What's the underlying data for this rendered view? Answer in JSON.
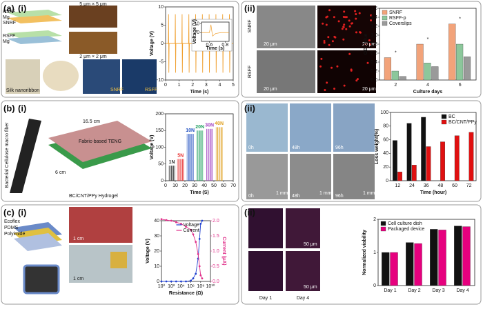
{
  "panels": {
    "a": "(a)",
    "b": "(b)",
    "c": "(c)",
    "i": "(i)",
    "ii": "(ii)"
  },
  "texts": [
    "RSFF",
    "Mg",
    "SNRF",
    "Silk nanoribbon",
    "5 μm × 5 μm",
    "2 μm × 2 μm",
    "20 μm",
    "Fabric-based TENG",
    "16.5 cm",
    "6 cm",
    "BC/CNT/PPy Hydrogel",
    "Bacterial Cellulose macro fiber",
    "0h",
    "48h",
    "96h",
    "1 mm",
    "Ecoflex",
    "PDMS",
    "Polyimide",
    "1 cm",
    "Day 1",
    "Day 4",
    "50 μm"
  ],
  "chart_data": [
    {
      "type": "line",
      "xlabel": "Time (s)",
      "ylabel": "Voltage (V)",
      "x": [
        0,
        0.2,
        0.22,
        0.24,
        0.26,
        0.7,
        0.72,
        0.74,
        0.76,
        1.2,
        1.22,
        1.24,
        1.26,
        1.7,
        1.72,
        1.74,
        1.76,
        2.2,
        2.22,
        2.24,
        2.26,
        2.7,
        2.72,
        2.74,
        2.76,
        3.2,
        3.22,
        3.24,
        3.26,
        3.7,
        3.72,
        3.74,
        3.76,
        4.2,
        4.22,
        4.24,
        4.26,
        4.7,
        4.72,
        4.74,
        4.76,
        5
      ],
      "series": [
        {
          "color": "#f0a030",
          "values": [
            0,
            0,
            8,
            -8,
            0,
            0,
            8,
            -8,
            0,
            0,
            8,
            -8,
            0,
            0,
            8,
            -8,
            0,
            0,
            8,
            -8,
            0,
            0,
            8,
            -8,
            0,
            0,
            8,
            -8,
            0,
            0,
            8,
            -8,
            0,
            0,
            8,
            -8,
            0,
            0,
            8,
            -8,
            0,
            0
          ]
        }
      ],
      "xlim": [
        0,
        5
      ],
      "ylim": [
        -10,
        10
      ],
      "xticks": [
        0,
        1,
        2,
        3,
        4,
        5
      ],
      "yticks": [
        -10,
        -5,
        0,
        5,
        10
      ]
    },
    {
      "type": "line",
      "xlabel": "Time (s)",
      "ylabel": "Voltage (V)",
      "x": [
        0.5,
        0.6,
        0.62,
        0.64,
        0.68,
        0.75,
        0.85
      ],
      "series": [
        {
          "color": "#f0a030",
          "values": [
            0,
            0,
            9,
            -4,
            -1,
            0,
            0
          ]
        }
      ],
      "xlim": [
        0.5,
        0.85
      ],
      "ylim": [
        -10,
        12
      ],
      "xticks": [
        0.6,
        0.8
      ],
      "yticks": [
        0,
        10
      ]
    },
    {
      "type": "bar",
      "xlabel": "Culture days",
      "ylabel": "OD Value",
      "categories": [
        "2",
        "4",
        "6"
      ],
      "series": [
        {
          "name": "SNRF",
          "color": "#f2a37a",
          "values": [
            0.5,
            0.8,
            1.25
          ]
        },
        {
          "name": "RSFF-p",
          "color": "#8cc79b",
          "values": [
            0.2,
            0.38,
            0.8
          ]
        },
        {
          "name": "Coverslips",
          "color": "#9a9a9a",
          "values": [
            0.08,
            0.3,
            0.52
          ]
        }
      ],
      "ylim": [
        0,
        1.6
      ],
      "yticks": [
        {
          "value": 0,
          "label": "0.0"
        },
        0.2,
        0.4,
        0.6,
        0.8,
        {
          "value": 1,
          "label": "1.0"
        },
        1.2,
        1.4,
        1.6
      ],
      "legend": "top-left",
      "annotation": "*"
    },
    {
      "type": "signal",
      "xlabel": "Time (S)",
      "ylabel": "Voltage (V)",
      "series": [
        {
          "name": "1N",
          "color": "#333333",
          "x_range": [
            3,
            10
          ],
          "values": [
            45
          ]
        },
        {
          "name": "5N",
          "color": "#e83030",
          "x_range": [
            12,
            19
          ],
          "values": [
            65
          ]
        },
        {
          "name": "10N",
          "color": "#2050c0",
          "x_range": [
            22,
            29
          ],
          "values": [
            140
          ]
        },
        {
          "name": "20N",
          "color": "#20a060",
          "x_range": [
            32,
            39
          ],
          "values": [
            150
          ]
        },
        {
          "name": "30N",
          "color": "#a040c0",
          "x_range": [
            42,
            49
          ],
          "values": [
            155
          ]
        },
        {
          "name": "40N",
          "color": "#e0a020",
          "x_range": [
            52,
            59
          ],
          "values": [
            160
          ]
        }
      ],
      "xlim": [
        0,
        70
      ],
      "ylim": [
        0,
        200
      ],
      "xticks": [
        0,
        10,
        20,
        30,
        40,
        50,
        60,
        70
      ],
      "yticks": [
        0,
        50,
        100,
        150,
        200
      ]
    },
    {
      "type": "bar",
      "xlabel": "Time (hour)",
      "ylabel": "Loss weight(%)",
      "categories": [
        "12",
        "24",
        "36",
        "48",
        "60",
        "72"
      ],
      "series": [
        {
          "name": "BC",
          "color": "#111111",
          "values": [
            59,
            84,
            93,
            null,
            null,
            null
          ]
        },
        {
          "name": "BC/CNT/PPy",
          "color": "#e01010",
          "values": [
            13,
            23,
            50,
            57,
            66,
            71
          ]
        }
      ],
      "ylim": [
        0,
        100
      ],
      "yticks": [
        0,
        20,
        40,
        60,
        80,
        100
      ],
      "legend": "top-right"
    },
    {
      "type": "line",
      "xlabel": "Resistance (Ω)",
      "ylabel": "Voltage (V)",
      "y2label": "Current (μA)",
      "log_x": true,
      "markers": true,
      "x": [
        1,
        10,
        100,
        1000,
        10000,
        100000,
        1000000,
        3000000,
        10000000,
        30000000,
        60000000,
        100000000,
        200000000
      ],
      "series": [
        {
          "name": "Voltage",
          "color": "#2040d0",
          "values": [
            0,
            0,
            0,
            0,
            0,
            0,
            0.5,
            2,
            5,
            15,
            28,
            38,
            40
          ]
        },
        {
          "name": "Current",
          "color": "#e0308a",
          "axis": "y2",
          "values": [
            2.05,
            2.02,
            2,
            1.95,
            1.9,
            1.8,
            1.7,
            1.55,
            1.3,
            0.9,
            0.5,
            0.2,
            0.1
          ]
        }
      ],
      "xlim": [
        1,
        10000000000
      ],
      "xticks": [
        {
          "value": 1,
          "label": "10⁰"
        },
        {
          "value": 100,
          "label": "10²"
        },
        {
          "value": 10000,
          "label": "10⁴"
        },
        {
          "value": 1000000,
          "label": "10⁶"
        },
        {
          "value": 100000000,
          "label": "10⁸"
        },
        {
          "value": 10000000000,
          "label": "10¹⁰"
        }
      ],
      "ylim": [
        0,
        40
      ],
      "yticks": [
        0,
        10,
        20,
        30,
        40
      ],
      "y2lim": [
        0,
        2
      ],
      "y2ticks": [
        {
          "value": 0,
          "label": "0.0"
        },
        0.5,
        {
          "value": 1,
          "label": "1.0"
        },
        1.5,
        {
          "value": 2,
          "label": "2.0"
        }
      ],
      "legend": "top-center"
    },
    {
      "type": "bar",
      "ylabel": "Normalized viability",
      "categories": [
        "Day 1",
        "Day 2",
        "Day 3",
        "Day 4"
      ],
      "series": [
        {
          "name": "Cell culture dish",
          "color": "#111111",
          "values": [
            1,
            1.3,
            1.7,
            1.8
          ]
        },
        {
          "name": "Packaged device",
          "color": "#e6007e",
          "values": [
            1,
            1.27,
            1.68,
            1.78
          ]
        }
      ],
      "ylim": [
        0,
        2
      ],
      "yticks": [
        0,
        1,
        2
      ],
      "legend": "top-left"
    }
  ]
}
